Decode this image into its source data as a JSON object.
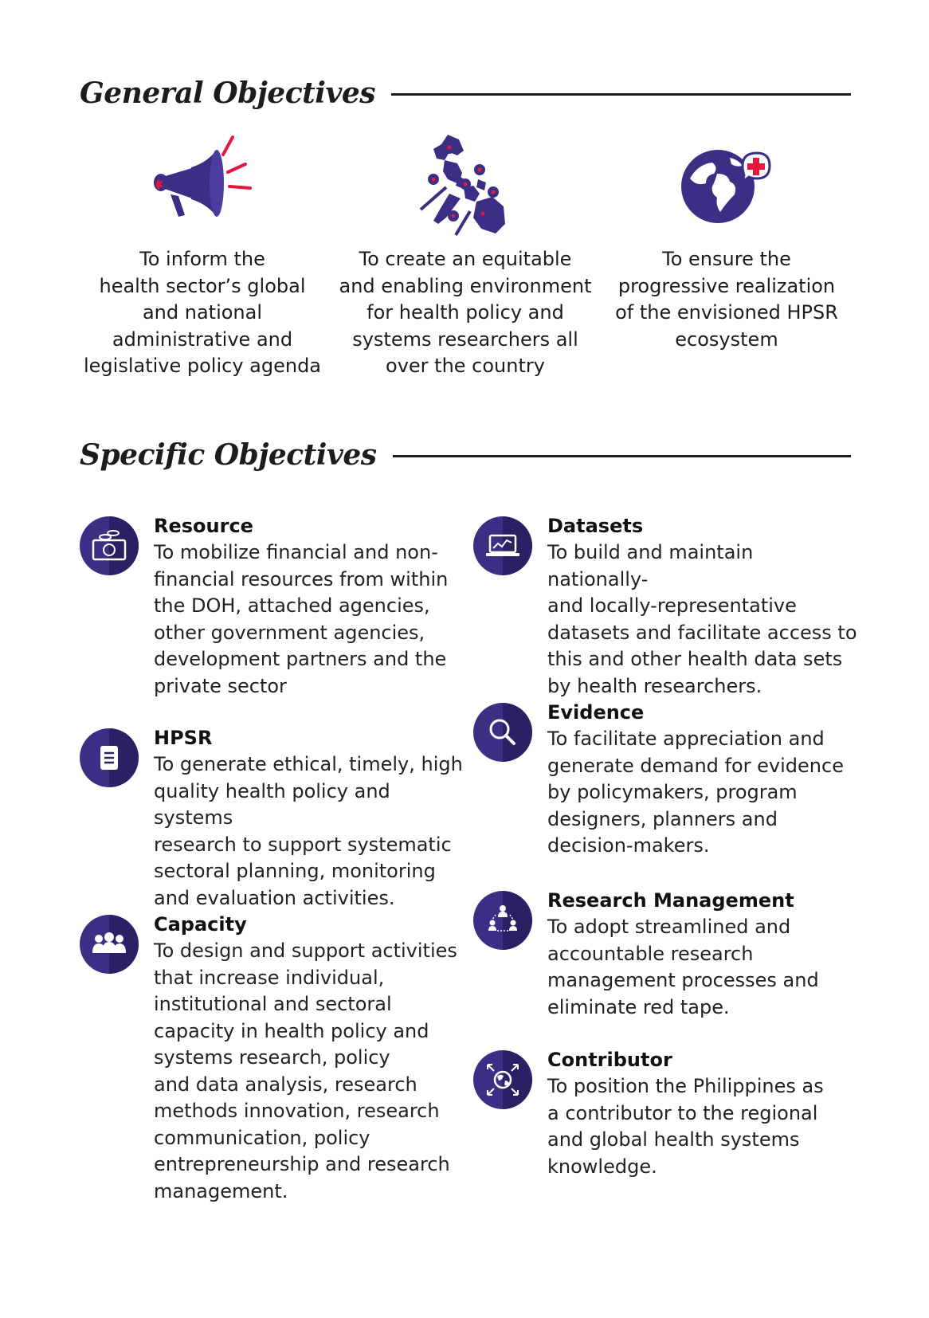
{
  "general": {
    "heading": "General Objectives",
    "items": [
      {
        "icon": "megaphone-icon",
        "lines": [
          "To inform the",
          "health sector’s global",
          "and national",
          "administrative and",
          "legislative policy agenda"
        ]
      },
      {
        "icon": "philippines-map-icon",
        "lines": [
          "To create an equitable",
          "and enabling environment",
          "for health policy and",
          "systems researchers all",
          "over the country"
        ]
      },
      {
        "icon": "globe-health-icon",
        "lines": [
          "To ensure the",
          "progressive realization",
          "of the envisioned HPSR",
          "ecosystem"
        ]
      }
    ]
  },
  "specific": {
    "heading": "Specific Objectives",
    "items": [
      {
        "icon": "money-icon",
        "title": "Resource",
        "lines": [
          "To mobilize financial and non-",
          "financial resources from within",
          "the DOH, attached agencies,",
          "other government agencies,",
          "development partners and the",
          "private sector"
        ]
      },
      {
        "icon": "document-icon",
        "title": "HPSR",
        "lines": [
          "To generate ethical, timely, high",
          "quality health policy and systems",
          "research to support systematic",
          "sectoral planning, monitoring",
          "and evaluation activities."
        ]
      },
      {
        "icon": "people-icon",
        "title": "Capacity",
        "lines": [
          "To design and support activities",
          "that increase individual,",
          "institutional and sectoral",
          "capacity in health policy and",
          "systems research, policy",
          "and data analysis, research",
          "methods innovation, research",
          "communication, policy",
          "entrepreneurship and research",
          "management."
        ]
      },
      {
        "icon": "laptop-chart-icon",
        "title": "Datasets",
        "lines": [
          "To build and maintain nationally-",
          "and locally-representative",
          "datasets and facilitate access to",
          "this and other health data sets",
          "by health researchers."
        ]
      },
      {
        "icon": "magnifier-icon",
        "title": "Evidence",
        "lines": [
          "To facilitate appreciation and",
          "generate demand for evidence",
          "by policymakers, program",
          "designers, planners and",
          "decision-makers."
        ]
      },
      {
        "icon": "network-people-icon",
        "title": "Research Management",
        "lines": [
          "To adopt streamlined and",
          "accountable research",
          "management processes and",
          "eliminate red tape."
        ]
      },
      {
        "icon": "globe-arrows-icon",
        "title": "Contributor",
        "lines": [
          "To position the Philippines as",
          "a contributor to the regional",
          "and global health systems",
          "knowledge."
        ]
      }
    ]
  },
  "colors": {
    "purple": "#3b2f85",
    "purple_dark": "#2a2165",
    "accent_red": "#e4173e",
    "text": "#1c1c1c"
  }
}
